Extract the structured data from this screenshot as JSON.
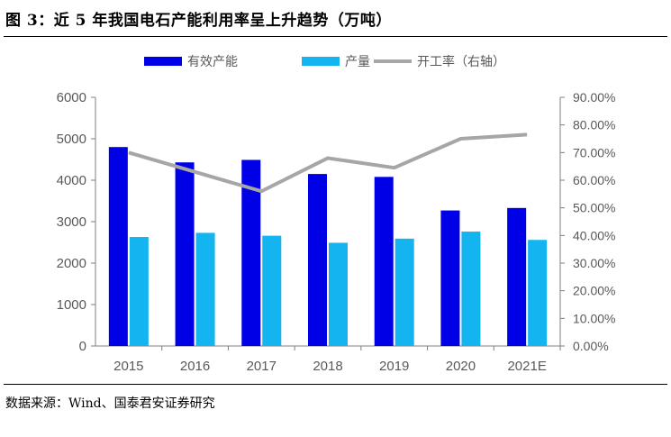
{
  "header": {
    "title": "图 3：近 5 年我国电石产能利用率呈上升趋势（万吨）"
  },
  "footer": {
    "source": "数据来源：Wind、国泰君安证券研究"
  },
  "colors": {
    "capacity": "#0000e6",
    "output": "#14b4f0",
    "utilization": "#a6a6a6",
    "axis": "#7f7f7f"
  },
  "chart_data": {
    "type": "bar",
    "categories": [
      "2015",
      "2016",
      "2017",
      "2018",
      "2019",
      "2020",
      "2021E"
    ],
    "series": [
      {
        "name": "有效产能",
        "type": "bar",
        "axis": "left",
        "values": [
          4800,
          4430,
          4490,
          4150,
          4080,
          3270,
          3330
        ]
      },
      {
        "name": "产量",
        "type": "bar",
        "axis": "left",
        "values": [
          2630,
          2730,
          2660,
          2490,
          2590,
          2760,
          2560
        ]
      },
      {
        "name": "开工率（右轴）",
        "type": "line",
        "axis": "right",
        "values": [
          70.0,
          63.0,
          56.0,
          68.0,
          64.5,
          75.0,
          76.5
        ]
      }
    ],
    "y_left": {
      "lim": [
        0,
        6000
      ],
      "ticks": [
        "0",
        "1000",
        "2000",
        "3000",
        "4000",
        "5000",
        "6000"
      ]
    },
    "y_right": {
      "lim": [
        0,
        90
      ],
      "ticks": [
        "0.00%",
        "10.00%",
        "20.00%",
        "30.00%",
        "40.00%",
        "50.00%",
        "60.00%",
        "70.00%",
        "80.00%",
        "90.00%"
      ]
    },
    "legend": [
      "有效产能",
      "产量",
      "开工率（右轴）"
    ],
    "legend_position": "top",
    "grid": false
  }
}
